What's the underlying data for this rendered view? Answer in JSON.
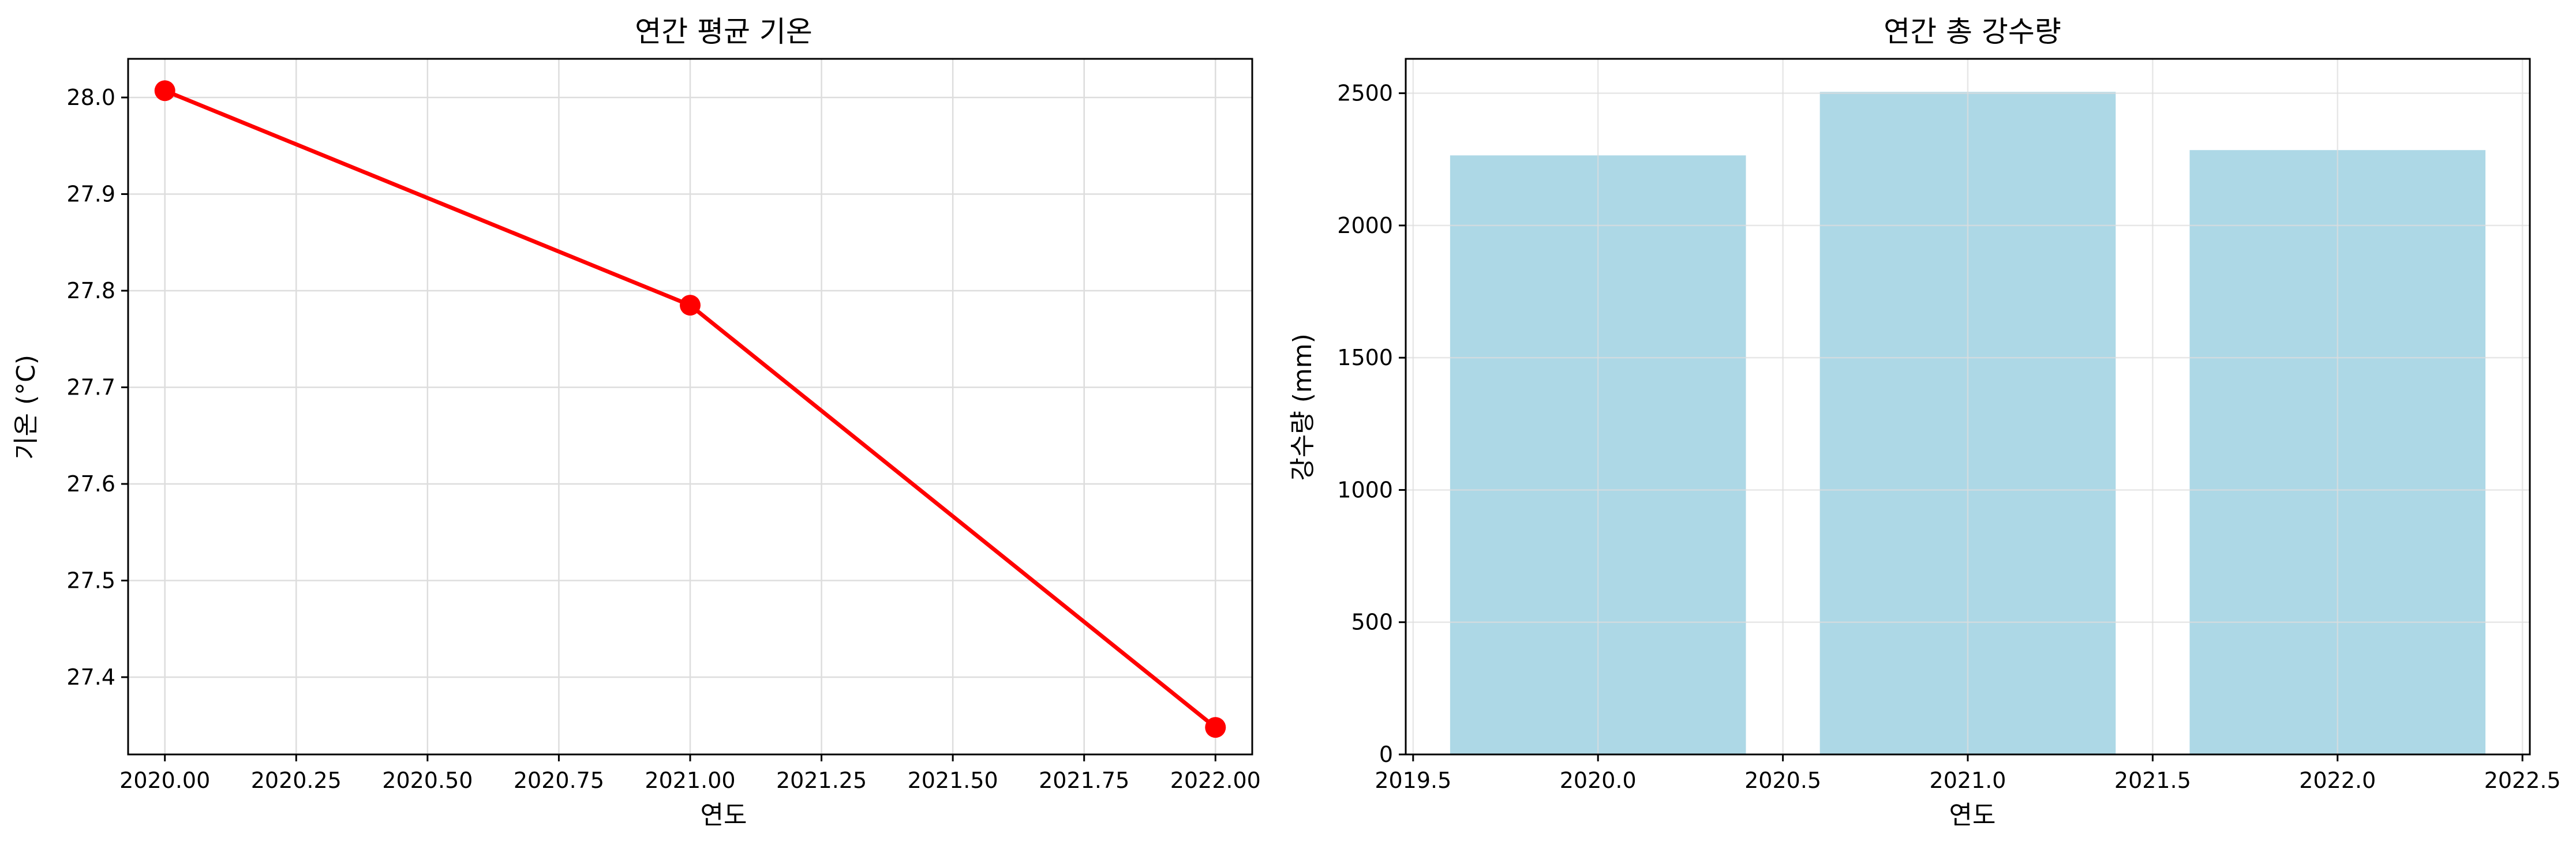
{
  "colors": {
    "line": "#ff0000",
    "bar": "#add8e6",
    "grid": "#dddddd"
  },
  "chart_data": [
    {
      "type": "line",
      "title": "연간 평균 기온",
      "xlabel": "연도",
      "ylabel": "기온 (°C)",
      "x": [
        2020,
        2021,
        2022
      ],
      "series": [
        {
          "values": [
            28.007,
            27.785,
            27.348
          ]
        }
      ],
      "xlim": [
        1999.9,
        2022.1
      ],
      "xlim_data": [
        2019.93,
        2022.07
      ],
      "ylim": [
        27.32,
        28.04
      ],
      "xticks": [
        2020.0,
        2020.25,
        2020.5,
        2020.75,
        2021.0,
        2021.25,
        2021.5,
        2021.75,
        2022.0
      ],
      "xtick_labels": [
        "2020.00",
        "2020.25",
        "2020.50",
        "2020.75",
        "2021.00",
        "2021.25",
        "2021.50",
        "2021.75",
        "2022.00"
      ],
      "yticks": [
        27.4,
        27.5,
        27.6,
        27.7,
        27.8,
        27.9,
        28.0
      ],
      "ytick_labels": [
        "27.4",
        "27.5",
        "27.6",
        "27.7",
        "27.8",
        "27.9",
        "28.0"
      ],
      "grid": true,
      "marker": "circle"
    },
    {
      "type": "bar",
      "title": "연간 총 강수량",
      "xlabel": "연도",
      "ylabel": "강수량 (mm)",
      "x": [
        2020,
        2021,
        2022
      ],
      "values": [
        2265,
        2505,
        2285
      ],
      "bar_width": 0.8,
      "xlim": [
        2019.48,
        2022.52
      ],
      "ylim": [
        0,
        2630
      ],
      "xticks": [
        2019.5,
        2020.0,
        2020.5,
        2021.0,
        2021.5,
        2022.0,
        2022.5
      ],
      "xtick_labels": [
        "2019.5",
        "2020.0",
        "2020.5",
        "2021.0",
        "2021.5",
        "2022.0",
        "2022.5"
      ],
      "yticks": [
        0,
        500,
        1000,
        1500,
        2000,
        2500
      ],
      "ytick_labels": [
        "0",
        "500",
        "1000",
        "1500",
        "2000",
        "2500"
      ],
      "grid": true
    }
  ]
}
